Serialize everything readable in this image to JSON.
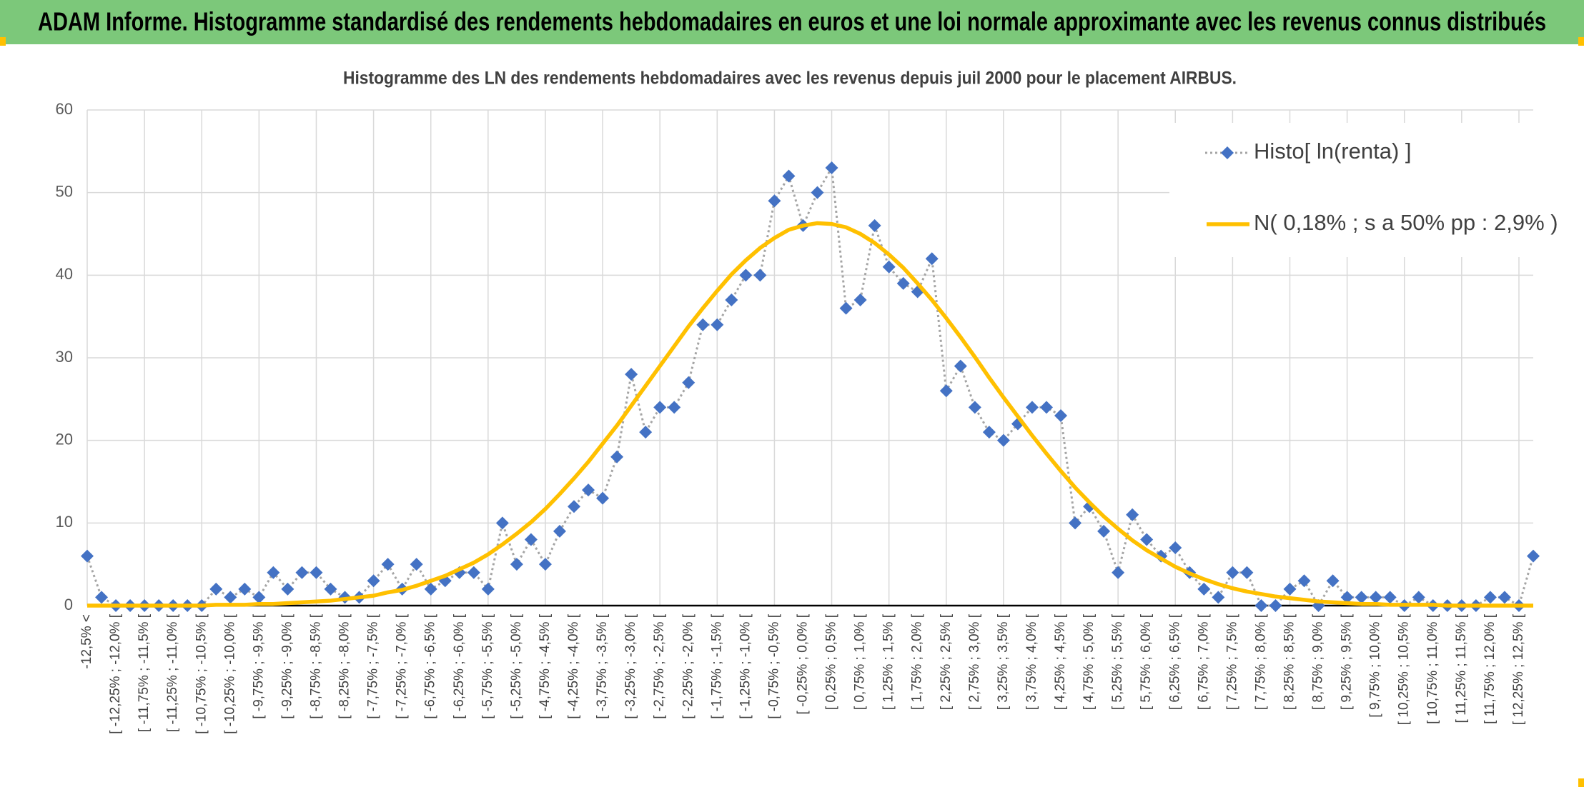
{
  "header": {
    "title": "ADAM Informe. Histogramme standardisé des rendements hebdomadaires en euros et une loi normale approximante avec les revenus connus distribués"
  },
  "chart_data": {
    "type": "line",
    "title": "Histogramme des LN des rendements hebdomadaires avec les revenus depuis juil 2000 pour le placement AIRBUS.",
    "categories": [
      "-12,5% <",
      null,
      "[ -12,25% ; -12,0% [",
      null,
      "[ -11,75% ; -11,5% [",
      null,
      "[ -11,25% ; -11,0% [",
      null,
      "[ -10,75% ; -10,5% [",
      null,
      "[ -10,25% ; -10,0% [",
      null,
      "[ -9,75% ; -9,5% [",
      null,
      "[ -9,25% ; -9,0% [",
      null,
      "[ -8,75% ; -8,5% [",
      null,
      "[ -8,25% ; -8,0% [",
      null,
      "[ -7,75% ; -7,5% [",
      null,
      "[ -7,25% ; -7,0% [",
      null,
      "[ -6,75% ; -6,5% [",
      null,
      "[ -6,25% ; -6,0% [",
      null,
      "[ -5,75% ; -5,5% [",
      null,
      "[ -5,25% ; -5,0% [",
      null,
      "[ -4,75% ; -4,5% [",
      null,
      "[ -4,25% ; -4,0% [",
      null,
      "[ -3,75% ; -3,5% [",
      null,
      "[ -3,25% ; -3,0% [",
      null,
      "[ -2,75% ; -2,5% [",
      null,
      "[ -2,25% ; -2,0% [",
      null,
      "[ -1,75% ; -1,5% [",
      null,
      "[ -1,25% ; -1,0% [",
      null,
      "[ -0,75% ; -0,5% [",
      null,
      "[ -0,25% ; 0,0% [",
      null,
      "[ 0,25% ; 0,5% [",
      null,
      "[ 0,75% ; 1,0% [",
      null,
      "[ 1,25% ; 1,5% [",
      null,
      "[ 1,75% ; 2,0% [",
      null,
      "[ 2,25% ; 2,5% [",
      null,
      "[ 2,75% ; 3,0% [",
      null,
      "[ 3,25% ; 3,5% [",
      null,
      "[ 3,75% ; 4,0% [",
      null,
      "[ 4,25% ; 4,5% [",
      null,
      "[ 4,75% ; 5,0% [",
      null,
      "[ 5,25% ; 5,5% [",
      null,
      "[ 5,75% ; 6,0% [",
      null,
      "[ 6,25% ; 6,5% [",
      null,
      "[ 6,75% ; 7,0% [",
      null,
      "[ 7,25% ; 7,5% [",
      null,
      "[ 7,75% ; 8,0% [",
      null,
      "[ 8,25% ; 8,5% [",
      null,
      "[ 8,75% ; 9,0% [",
      null,
      "[ 9,25% ; 9,5% [",
      null,
      "[ 9,75% ; 10,0% [",
      null,
      "[ 10,25% ; 10,5% [",
      null,
      "[ 10,75% ; 11,0% [",
      null,
      "[ 11,25% ; 11,5% [",
      null,
      "[ 11,75% ; 12,0% [",
      null,
      "[ 12,25% ; 12,5% [",
      null
    ],
    "series": [
      {
        "name": "Histo[ ln(renta) ]",
        "color": "#4472c4",
        "line_color": "#a5a5a5",
        "values": [
          6,
          1,
          0,
          0,
          0,
          0,
          0,
          0,
          0,
          2,
          1,
          2,
          1,
          4,
          2,
          4,
          4,
          2,
          1,
          1,
          3,
          5,
          2,
          5,
          2,
          3,
          4,
          4,
          2,
          10,
          5,
          8,
          5,
          9,
          12,
          14,
          13,
          18,
          28,
          21,
          24,
          24,
          27,
          34,
          34,
          37,
          40,
          40,
          49,
          52,
          46,
          50,
          53,
          36,
          37,
          46,
          41,
          39,
          38,
          42,
          26,
          29,
          24,
          21,
          20,
          22,
          24,
          24,
          23,
          10,
          12,
          9,
          4,
          11,
          8,
          6,
          7,
          4,
          2,
          1,
          4,
          4,
          0,
          0,
          2,
          3,
          0,
          3,
          1,
          1,
          1,
          1,
          0,
          1,
          0,
          0,
          0,
          0,
          1,
          1,
          0,
          6
        ]
      },
      {
        "name": "N( 0,18% ; s a 50% pp : 2,9% )",
        "color": "#ffc000",
        "values": [
          0,
          0,
          0,
          0,
          0,
          0,
          0,
          0,
          0,
          0.1,
          0.1,
          0.1,
          0.2,
          0.2,
          0.3,
          0.4,
          0.5,
          0.6,
          0.8,
          1.0,
          1.2,
          1.6,
          1.9,
          2.4,
          3.0,
          3.6,
          4.4,
          5.2,
          6.2,
          7.4,
          8.7,
          10.1,
          11.7,
          13.5,
          15.4,
          17.4,
          19.6,
          21.8,
          24.2,
          26.6,
          29.0,
          31.4,
          33.8,
          36.0,
          38.1,
          40.1,
          41.8,
          43.3,
          44.5,
          45.5,
          46.0,
          46.3,
          46.2,
          45.8,
          45.0,
          43.9,
          42.5,
          40.9,
          39.0,
          37.0,
          34.8,
          32.5,
          30.1,
          27.6,
          25.2,
          22.9,
          20.6,
          18.4,
          16.3,
          14.3,
          12.5,
          10.8,
          9.3,
          7.9,
          6.7,
          5.7,
          4.7,
          3.9,
          3.2,
          2.6,
          2.1,
          1.7,
          1.4,
          1.1,
          0.9,
          0.7,
          0.5,
          0.4,
          0.3,
          0.2,
          0.2,
          0.1,
          0.1,
          0.1,
          0.1,
          0,
          0,
          0,
          0,
          0,
          0,
          0
        ]
      }
    ],
    "ylim": [
      0,
      60
    ],
    "yticks": [
      0,
      10,
      20,
      30,
      40,
      50,
      60
    ],
    "grid": true,
    "legend": "top-right"
  }
}
